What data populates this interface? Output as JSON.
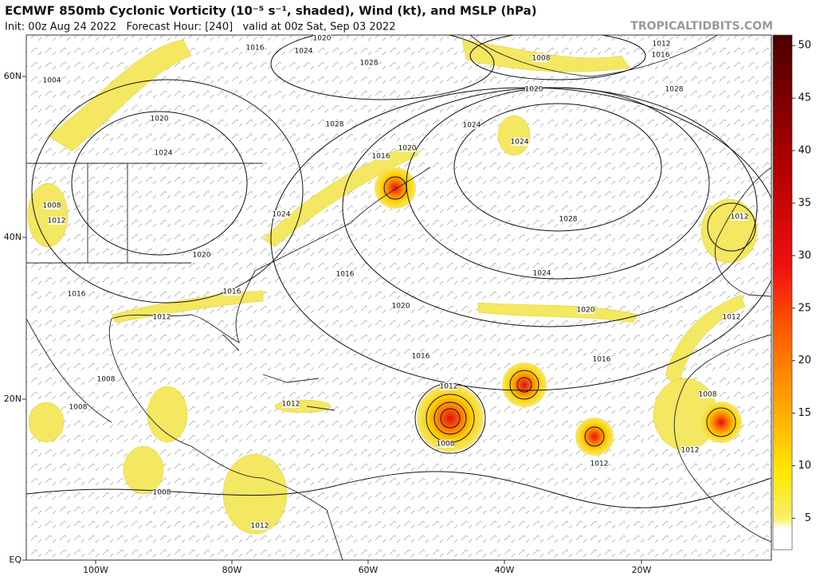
{
  "header": {
    "title": "ECMWF 850mb Cyclonic Vorticity (10⁻⁵ s⁻¹, shaded), Wind (kt), and MSLP (hPa)",
    "subtitle": "Init: 00z Aug 24 2022   Forecast Hour: [240]   valid at 00z Sat, Sep 03 2022",
    "site": "TROPICALTIDBITS.COM"
  },
  "map": {
    "lat_labels": [
      "60N",
      "40N",
      "20N",
      "EQ"
    ],
    "lon_labels": [
      "100W",
      "80W",
      "60W",
      "40W",
      "20W"
    ],
    "isobar_labels": [
      "1020",
      "1024",
      "1016",
      "1004",
      "1028",
      "1020",
      "1024",
      "1028",
      "1020",
      "1016",
      "1024",
      "1024",
      "1020",
      "1012",
      "1016",
      "1008",
      "1028",
      "1028",
      "1024",
      "1020",
      "1016",
      "1024",
      "1020",
      "1016",
      "1016",
      "1016",
      "1012",
      "1020",
      "1016",
      "1012",
      "1008",
      "1012",
      "1012",
      "1008",
      "1008",
      "1008",
      "1012",
      "1012",
      "1012",
      "1008",
      "1012",
      "1008",
      "1012"
    ]
  },
  "colorbar": {
    "ticks": [
      5,
      10,
      15,
      20,
      25,
      30,
      35,
      40,
      45,
      50
    ],
    "lim": [
      2,
      51
    ]
  }
}
